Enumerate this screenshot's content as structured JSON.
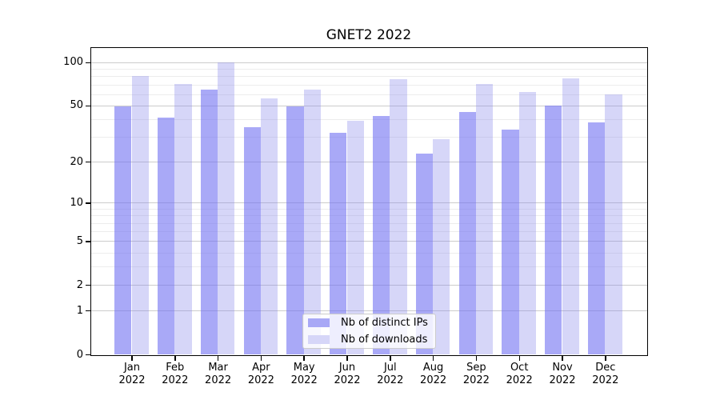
{
  "page": {
    "background": "#ffffff"
  },
  "chart_data": {
    "type": "bar",
    "title": "GNET2 2022",
    "yscale": "log1p",
    "categories": [
      "Jan",
      "Feb",
      "Mar",
      "Apr",
      "May",
      "Jun",
      "Jul",
      "Aug",
      "Sep",
      "Oct",
      "Nov",
      "Dec"
    ],
    "category_year": "2022",
    "series": [
      {
        "name": "Nb of distinct IPs",
        "color": "#a8a8f6",
        "fill": "rgba(112,112,242,0.60)",
        "values": [
          49,
          41,
          65,
          35,
          49,
          32,
          42,
          23,
          45,
          34,
          50,
          38
        ]
      },
      {
        "name": "Nb of downloads",
        "color": "#d6d6f8",
        "fill": "rgba(130,130,235,0.33)",
        "values": [
          80,
          71,
          100,
          56,
          65,
          39,
          76,
          29,
          71,
          62,
          77,
          60
        ]
      }
    ],
    "y_ticks": [
      0,
      1,
      2,
      5,
      10,
      20,
      50,
      100
    ],
    "y_minor_ticks": [
      3,
      4,
      6,
      7,
      8,
      9,
      30,
      40,
      60,
      70,
      80,
      90
    ],
    "ylim": [
      0,
      100
    ],
    "grid": true,
    "legend_position": "lower center",
    "axis_color": "#000000",
    "grid_major_color": "#cccccc",
    "grid_minor_color": "#ececec"
  }
}
